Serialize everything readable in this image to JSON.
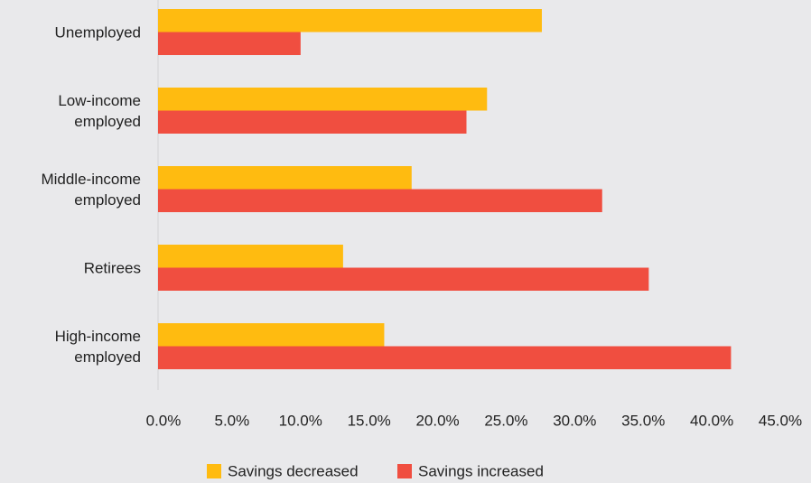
{
  "chart_data": {
    "type": "bar",
    "orientation": "horizontal",
    "categories": [
      "Unemployed",
      "Low-income employed",
      "Middle-income employed",
      "Retirees",
      "High-income employed"
    ],
    "series": [
      {
        "name": "Savings decreased",
        "color": "#ffbb10",
        "values": [
          28,
          24,
          18.5,
          13.5,
          16.5
        ]
      },
      {
        "name": "Savings increased",
        "color": "#f04e40",
        "values": [
          10.4,
          22.5,
          32.4,
          35.8,
          41.8
        ]
      }
    ],
    "xlim": [
      0,
      45
    ],
    "xticks": [
      {
        "value": 0,
        "label": "0.0%"
      },
      {
        "value": 5,
        "label": "5.0%"
      },
      {
        "value": 10,
        "label": "10.0%"
      },
      {
        "value": 15,
        "label": "15.0%"
      },
      {
        "value": 20,
        "label": "20.0%"
      },
      {
        "value": 25,
        "label": "25.0%"
      },
      {
        "value": 30,
        "label": "30.0%"
      },
      {
        "value": 35,
        "label": "35.0%"
      },
      {
        "value": 40,
        "label": "40.0%"
      },
      {
        "value": 45,
        "label": "45.0%"
      }
    ],
    "legend": "bottom"
  }
}
